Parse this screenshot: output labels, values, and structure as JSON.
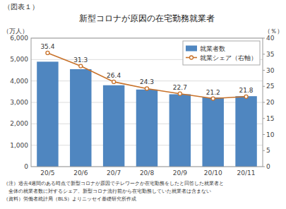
{
  "chart_data": {
    "type": "bar",
    "title": "新型コロナが原因の在宅勤務就業者",
    "figure_label": "（図表１）",
    "notes": [
      "（注）過去4週間のある時点で新型コロナが原因でテレワークか在宅勤務をしたと回答した就業者と",
      "　全体の就業者数に対するシェア。新型コロナ流行前から在宅勤務していた就業者は含まない",
      "（資料）労働者統計局（BLS）よりニッセイ基礎研究所作成"
    ],
    "ylabel": "（万人）",
    "y2label": "（％）",
    "categories": [
      "20/5",
      "20/6",
      "20/7",
      "20/8",
      "20/9",
      "20/10",
      "20/11"
    ],
    "series": [
      {
        "name": "就業者数",
        "type": "bar",
        "color": "#4f86c0",
        "values": [
          4900,
          4550,
          3800,
          3600,
          3380,
          3230,
          3290
        ]
      },
      {
        "name": "就業シェア（右軸）",
        "type": "line",
        "axis": "y2",
        "color": "#c8722a",
        "marker": "circle",
        "data_labels": true,
        "values": [
          35.4,
          31.3,
          26.4,
          24.3,
          22.7,
          21.2,
          21.8
        ]
      }
    ],
    "ylim": [
      0,
      6000
    ],
    "yticks": [
      0,
      {
        "value": 1000,
        "label": "1,000"
      },
      {
        "value": 2000,
        "label": "2,000"
      },
      {
        "value": 3000,
        "label": "3,000"
      },
      {
        "value": 4000,
        "label": "4,000"
      },
      {
        "value": 5000,
        "label": "5,000"
      },
      {
        "value": 6000,
        "label": "6,000"
      }
    ],
    "y2lim": [
      0,
      40
    ],
    "y2ticks": [
      0,
      5,
      10,
      15,
      20,
      25,
      30,
      35,
      40
    ],
    "grid": true,
    "legend": "upper right"
  }
}
